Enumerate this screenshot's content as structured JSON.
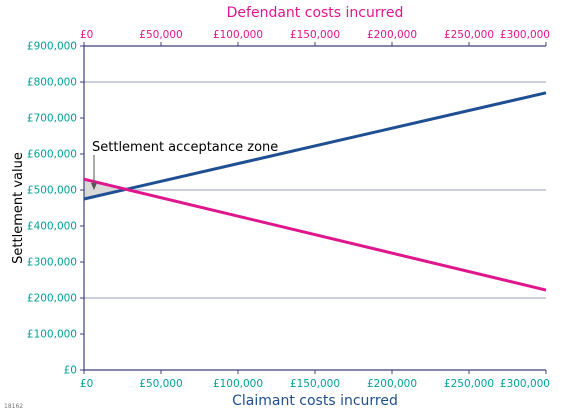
{
  "figure_id": "18162",
  "colors": {
    "claimant_line": "#1f4f93",
    "defendant_line": "#e0168c",
    "grid": "#9b9bc4",
    "axis": "#3b3f7a",
    "tick_text": "#00a19a",
    "zone_fill": "#d9d9d9"
  },
  "chart_data": {
    "type": "line",
    "title": "",
    "xlabel_bottom": "Claimant costs incurred",
    "xlabel_top": "Defendant costs incurred",
    "ylabel": "Settlement value",
    "xlim": [
      0,
      300000
    ],
    "ylim": [
      0,
      900000
    ],
    "x_ticks": [
      0,
      50000,
      100000,
      150000,
      200000,
      250000,
      300000
    ],
    "x_tick_labels_bottom": [
      "£0",
      "£50,000",
      "£100,000",
      "£150,000",
      "£200,000",
      "£250,000",
      "£300,000"
    ],
    "x_tick_labels_top": [
      "£0",
      "£50,000",
      "£100,000",
      "£150,000",
      "£200,000",
      "£250,000",
      "£300,000"
    ],
    "y_ticks": [
      0,
      100000,
      200000,
      300000,
      400000,
      500000,
      600000,
      700000,
      800000,
      900000
    ],
    "y_tick_labels": [
      "£0",
      "£100,000",
      "£200,000",
      "£300,000",
      "£400,000",
      "£500,000",
      "£600,000",
      "£700,000",
      "£800,000",
      "£900,000"
    ],
    "gridlines_y": [
      200000,
      500000,
      800000
    ],
    "series": [
      {
        "axis": "bottom",
        "x": [
          0,
          300000
        ],
        "y": [
          475000,
          770000
        ]
      },
      {
        "axis": "top",
        "x": [
          0,
          300000
        ],
        "y": [
          530000,
          222000
        ]
      }
    ],
    "annotation": {
      "text": "Settlement acceptance zone",
      "zone": {
        "x_start": 0,
        "x_end": 27000,
        "y_low": 475000,
        "y_high": 530000,
        "intersection_y": 502000
      }
    }
  }
}
